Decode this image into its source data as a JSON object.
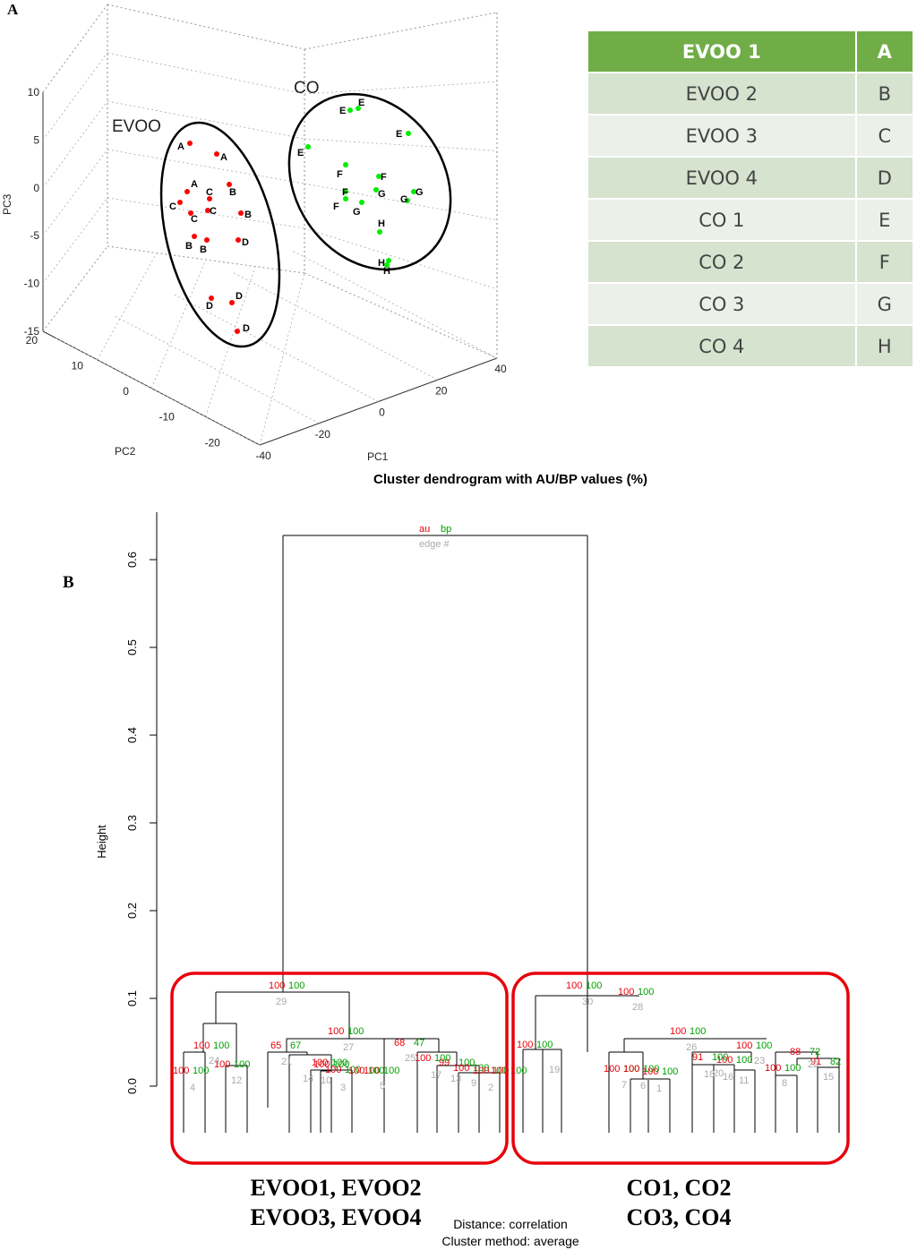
{
  "panel_a": {
    "letter": "A",
    "chart_data": {
      "type": "scatter",
      "axes": {
        "x": {
          "label": "PC1",
          "range": [
            -40,
            40
          ],
          "ticks": [
            -40,
            -20,
            0,
            20,
            40
          ]
        },
        "y": {
          "label": "PC2",
          "range": [
            -20,
            20
          ],
          "ticks": [
            -20,
            -10,
            0,
            10,
            20
          ]
        },
        "z": {
          "label": "PC3",
          "range": [
            -15,
            10
          ],
          "ticks": [
            -15,
            -10,
            -5,
            0,
            5,
            10
          ]
        }
      },
      "groups": [
        {
          "label": "EVOO",
          "color": "#ff0000",
          "samples": [
            "A",
            "B",
            "C",
            "D"
          ]
        },
        {
          "label": "CO",
          "color": "#00ee00",
          "samples": [
            "E",
            "F",
            "G",
            "H"
          ]
        }
      ],
      "grid": true
    },
    "legend": {
      "header": {
        "sample": "EVOO 1",
        "code": "A"
      },
      "rows": [
        {
          "sample": "EVOO 2",
          "code": "B"
        },
        {
          "sample": "EVOO 3",
          "code": "C"
        },
        {
          "sample": "EVOO 4",
          "code": "D"
        },
        {
          "sample": "CO 1",
          "code": "E"
        },
        {
          "sample": "CO 2",
          "code": "F"
        },
        {
          "sample": "CO 3",
          "code": "G"
        },
        {
          "sample": "CO 4",
          "code": "H"
        }
      ],
      "colors": {
        "header": "#70ad47",
        "odd": "#d5e3cf",
        "even": "#ebf1e9"
      }
    }
  },
  "panel_b": {
    "letter": "B",
    "title": "Cluster dendrogram with AU/BP values (%)",
    "chart_data": {
      "type": "dendrogram",
      "ylabel": "Height",
      "ylim": [
        0,
        0.65
      ],
      "yticks": [
        "0.0",
        "0.1",
        "0.2",
        "0.3",
        "0.4",
        "0.5",
        "0.6"
      ],
      "key": {
        "au": "au",
        "bp": "bp",
        "edge": "edge #"
      },
      "colors": {
        "au": "#e8000b",
        "bp": "#00a000",
        "edge": "#aaaaaa"
      },
      "merges": [
        {
          "edge": "29",
          "height": 0.1,
          "au": "100",
          "bp": "100"
        },
        {
          "edge": "30",
          "height": 0.1,
          "au": "100",
          "bp": "100"
        },
        {
          "edge": "28",
          "height": 0.1,
          "au": "100",
          "bp": "100"
        },
        {
          "edge": "27",
          "height": 0.05,
          "au": "100",
          "bp": "100"
        },
        {
          "edge": "26",
          "height": 0.05,
          "au": "100",
          "bp": "100"
        },
        {
          "edge": "25",
          "height": 0.035,
          "au": "68",
          "bp": "47"
        },
        {
          "edge": "24",
          "height": 0.035,
          "au": "100",
          "bp": "100"
        },
        {
          "edge": "23",
          "height": 0.03,
          "au": "100",
          "bp": "100"
        },
        {
          "edge": "22",
          "height": 0.035,
          "au": "88",
          "bp": "72"
        },
        {
          "edge": "21",
          "height": 0.025,
          "au": "65",
          "bp": "67"
        },
        {
          "edge": "20",
          "height": 0.035,
          "au": "100",
          "bp": "100"
        },
        {
          "edge": "19",
          "height": 0.02,
          "au": "100",
          "bp": "100"
        },
        {
          "edge": "18",
          "height": 0.03,
          "au": "91",
          "bp": "100"
        },
        {
          "edge": "17",
          "height": 0.025,
          "au": "100",
          "bp": "100"
        },
        {
          "edge": "16",
          "height": 0.03,
          "au": "100",
          "bp": "100"
        },
        {
          "edge": "15",
          "height": 0.02,
          "au": "91",
          "bp": "82"
        },
        {
          "edge": "14",
          "height": 0.02,
          "au": "100",
          "bp": "100"
        },
        {
          "edge": "13",
          "height": 0.02,
          "au": "99",
          "bp": "100"
        },
        {
          "edge": "12",
          "height": 0.015,
          "au": "100",
          "bp": "100"
        },
        {
          "edge": "11",
          "height": 0.015,
          "au": "100",
          "bp": "100"
        },
        {
          "edge": "10",
          "height": 0.015,
          "au": "100",
          "bp": "100"
        },
        {
          "edge": "9",
          "height": 0.015,
          "au": "100",
          "bp": "100"
        },
        {
          "edge": "8",
          "height": 0.01,
          "au": "100",
          "bp": "100"
        },
        {
          "edge": "7",
          "height": 0.01,
          "au": "100",
          "bp": "100"
        },
        {
          "edge": "6",
          "height": 0.01,
          "au": "100",
          "bp": "100"
        },
        {
          "edge": "5",
          "height": 0.01,
          "au": "100",
          "bp": "100"
        },
        {
          "edge": "4",
          "height": 0.01,
          "au": "100",
          "bp": "100"
        },
        {
          "edge": "3",
          "height": 0.01,
          "au": "100",
          "bp": "100"
        },
        {
          "edge": "2",
          "height": 0.01,
          "au": "100",
          "bp": "100"
        },
        {
          "edge": "1",
          "height": 0.01,
          "au": "100",
          "bp": "100"
        }
      ],
      "clusters": [
        {
          "label_lines": [
            "EVOO1, EVOO2",
            "EVOO3, EVOO4"
          ],
          "color": "#e8000b"
        },
        {
          "label_lines": [
            "CO1, CO2",
            "CO3, CO4"
          ],
          "color": "#e8000b"
        }
      ]
    },
    "footer": {
      "distance": "Distance:  correlation",
      "method": "Cluster method: average"
    }
  }
}
